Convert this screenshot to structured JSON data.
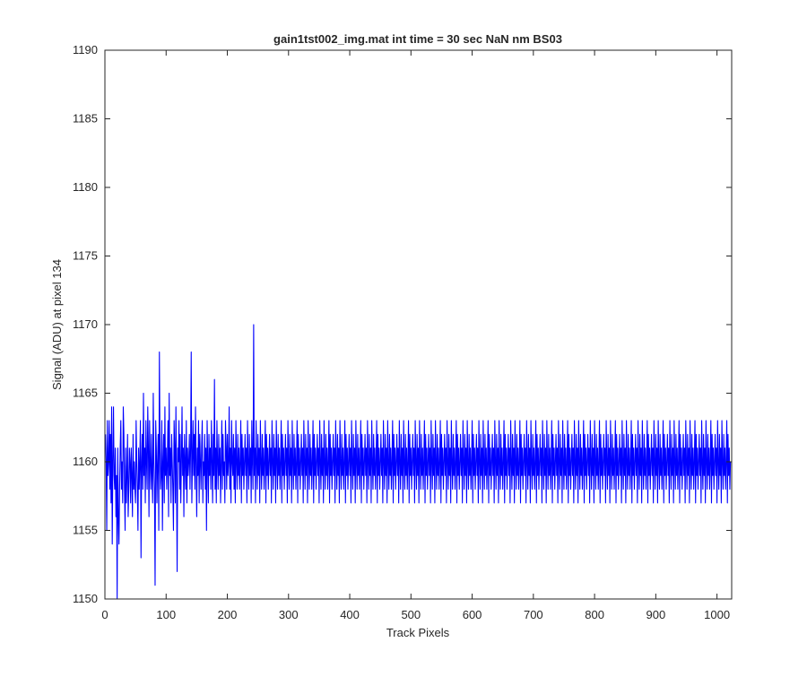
{
  "chart_data": {
    "type": "line",
    "title": "gain1tst002_img.mat int time = 30 sec  NaN nm BS03",
    "xlabel": "Track Pixels",
    "ylabel": "Signal (ADU) at pixel 134",
    "xlim": [
      0,
      1024
    ],
    "ylim": [
      1150,
      1190
    ],
    "xticks": [
      0,
      100,
      200,
      300,
      400,
      500,
      600,
      700,
      800,
      900,
      1000
    ],
    "yticks": [
      1150,
      1155,
      1160,
      1165,
      1170,
      1175,
      1180,
      1185,
      1190
    ],
    "grid": false,
    "legend": "none",
    "line_color": "#0000ff",
    "series": [
      {
        "x_start": 1,
        "x_step": 1,
        "values": [
          1162,
          1160,
          1155,
          1163,
          1159,
          1160,
          1163,
          1158,
          1162,
          1157,
          1164,
          1154,
          1160,
          1164,
          1159,
          1158,
          1161,
          1156,
          1159,
          1150,
          1161,
          1156,
          1154,
          1158,
          1161,
          1163,
          1158,
          1160,
          1157,
          1164,
          1162,
          1158,
          1155,
          1161,
          1157,
          1159,
          1162,
          1156,
          1158,
          1161,
          1160,
          1157,
          1161,
          1159,
          1156,
          1162,
          1158,
          1160,
          1158,
          1157,
          1163,
          1160,
          1158,
          1155,
          1161,
          1158,
          1160,
          1163,
          1153,
          1160,
          1162,
          1158,
          1165,
          1159,
          1161,
          1157,
          1163,
          1160,
          1158,
          1164,
          1161,
          1156,
          1163,
          1160,
          1158,
          1162,
          1159,
          1157,
          1165,
          1160,
          1158,
          1151,
          1163,
          1161,
          1157,
          1160,
          1162,
          1155,
          1168,
          1161,
          1158,
          1159,
          1163,
          1155,
          1160,
          1162,
          1157,
          1164,
          1159,
          1161,
          1158,
          1160,
          1163,
          1156,
          1165,
          1159,
          1161,
          1157,
          1162,
          1160,
          1158,
          1155,
          1163,
          1161,
          1157,
          1164,
          1159,
          1152,
          1161,
          1160,
          1163,
          1158,
          1162,
          1157,
          1160,
          1164,
          1159,
          1161,
          1156,
          1162,
          1160,
          1158,
          1163,
          1157,
          1161,
          1159,
          1160,
          1162,
          1158,
          1161,
          1168,
          1157,
          1160,
          1163,
          1159,
          1162,
          1158,
          1164,
          1160,
          1156,
          1161,
          1159,
          1163,
          1157,
          1162,
          1160,
          1158,
          1161,
          1163,
          1157,
          1160,
          1159,
          1162,
          1158,
          1161,
          1155,
          1163,
          1160,
          1157,
          1162,
          1159,
          1161,
          1158,
          1163,
          1160,
          1157,
          1162,
          1159,
          1166,
          1158,
          1161,
          1157,
          1163,
          1160,
          1158,
          1162,
          1159,
          1161,
          1157,
          1160,
          1163,
          1158,
          1162,
          1159,
          1160,
          1157,
          1163,
          1161,
          1158,
          1162,
          1159,
          1160,
          1164,
          1158,
          1161,
          1157,
          1163,
          1160,
          1159,
          1162,
          1158,
          1161,
          1157,
          1163,
          1160,
          1158,
          1162,
          1159,
          1161,
          1158,
          1160,
          1163,
          1157,
          1162,
          1159,
          1161,
          1158,
          1160,
          1162,
          1159,
          1161,
          1157,
          1163,
          1160,
          1158,
          1162,
          1159,
          1161,
          1157,
          1163,
          1160,
          1158,
          1170,
          1159,
          1161,
          1157,
          1163,
          1160,
          1158,
          1162,
          1159,
          1161,
          1157,
          1163,
          1160,
          1158,
          1162,
          1159,
          1161,
          1158,
          1160,
          1163,
          1157,
          1162,
          1159,
          1161,
          1158,
          1160,
          1162,
          1159,
          1161,
          1157,
          1163,
          1160,
          1158,
          1162,
          1159,
          1161,
          1157,
          1163,
          1160,
          1158,
          1162,
          1159,
          1161,
          1158,
          1160,
          1163,
          1157,
          1162,
          1159,
          1161,
          1158,
          1160,
          1162,
          1159,
          1161,
          1157,
          1163,
          1160,
          1158,
          1162,
          1159,
          1161,
          1157,
          1163,
          1160,
          1158,
          1162,
          1159,
          1161,
          1158,
          1160,
          1163,
          1157,
          1162,
          1159,
          1161,
          1158,
          1160,
          1162,
          1159,
          1161,
          1157,
          1163,
          1160,
          1158,
          1162,
          1159,
          1161,
          1157,
          1163,
          1160,
          1158,
          1162,
          1159,
          1161,
          1158,
          1160,
          1163,
          1157,
          1162,
          1159,
          1161,
          1158,
          1160,
          1162,
          1159,
          1161,
          1157,
          1163,
          1160,
          1158,
          1162,
          1159,
          1161,
          1157,
          1163,
          1160,
          1158,
          1162,
          1159,
          1161,
          1158,
          1160,
          1163,
          1157,
          1162,
          1159,
          1161,
          1158,
          1160,
          1162,
          1159,
          1161,
          1157,
          1163,
          1160,
          1158,
          1162,
          1159,
          1161,
          1157,
          1163,
          1160,
          1158,
          1162,
          1159,
          1161,
          1158,
          1160,
          1163,
          1157,
          1162,
          1159,
          1161,
          1158,
          1160,
          1162,
          1159,
          1161,
          1157,
          1163,
          1160,
          1158,
          1162,
          1159,
          1161,
          1157,
          1163,
          1160,
          1158,
          1162,
          1159,
          1161,
          1158,
          1160,
          1163,
          1157,
          1162,
          1159,
          1161,
          1158,
          1160,
          1162,
          1159,
          1161,
          1157,
          1163,
          1160,
          1158,
          1162,
          1159,
          1161,
          1157,
          1163,
          1160,
          1158,
          1162,
          1159,
          1161,
          1158,
          1160,
          1163,
          1157,
          1162,
          1159,
          1161,
          1158,
          1160,
          1162,
          1159,
          1161,
          1157,
          1163,
          1160,
          1158,
          1162,
          1159,
          1161,
          1157,
          1163,
          1160,
          1158,
          1162,
          1159,
          1161,
          1158,
          1160,
          1163,
          1157,
          1162,
          1159,
          1161,
          1158,
          1160,
          1162,
          1159,
          1161,
          1157,
          1163,
          1160,
          1158,
          1162,
          1159,
          1161,
          1157,
          1163,
          1160,
          1158,
          1162,
          1159,
          1161,
          1158,
          1160,
          1163,
          1157,
          1162,
          1159,
          1161,
          1158,
          1160,
          1162,
          1159,
          1161,
          1157,
          1163,
          1160,
          1158,
          1162,
          1159,
          1161,
          1157,
          1163,
          1160,
          1158,
          1162,
          1159,
          1161,
          1158,
          1160,
          1163,
          1157,
          1162,
          1159,
          1161,
          1158,
          1160,
          1162,
          1159,
          1161,
          1157,
          1163,
          1160,
          1158,
          1162,
          1159,
          1161,
          1157,
          1163,
          1160,
          1158,
          1162,
          1159,
          1161,
          1158,
          1160,
          1163,
          1157,
          1162,
          1159,
          1161,
          1158,
          1160,
          1162,
          1159,
          1161,
          1157,
          1163,
          1160,
          1158,
          1162,
          1159,
          1161,
          1157,
          1163,
          1160,
          1158,
          1162,
          1159,
          1161,
          1158,
          1160,
          1163,
          1157,
          1162,
          1159,
          1161,
          1158,
          1160,
          1162,
          1159,
          1161,
          1157,
          1163,
          1160,
          1158,
          1162,
          1159,
          1161,
          1157,
          1163,
          1160,
          1158,
          1162,
          1159,
          1161,
          1158,
          1160,
          1163,
          1157,
          1162,
          1159,
          1161,
          1158,
          1160,
          1162,
          1159,
          1161,
          1157,
          1163,
          1160,
          1158,
          1162,
          1159,
          1161,
          1157,
          1163,
          1160,
          1158,
          1162,
          1159,
          1161,
          1158,
          1160,
          1163,
          1157,
          1162,
          1159,
          1161,
          1158,
          1160,
          1162,
          1159,
          1161,
          1157,
          1163,
          1160,
          1158,
          1162,
          1159,
          1161,
          1157,
          1163,
          1160,
          1158,
          1162,
          1159,
          1161,
          1158,
          1160,
          1163,
          1157,
          1162,
          1159,
          1161,
          1158,
          1160,
          1162,
          1159,
          1161,
          1157,
          1163,
          1160,
          1158,
          1162,
          1159,
          1161,
          1157,
          1163,
          1160,
          1158,
          1162,
          1159,
          1161,
          1158,
          1160,
          1163,
          1157,
          1162,
          1159,
          1161,
          1158,
          1160,
          1162,
          1159,
          1161,
          1157,
          1163,
          1160,
          1158,
          1162,
          1159,
          1161,
          1157,
          1163,
          1160,
          1158,
          1162,
          1159,
          1161,
          1158,
          1160,
          1163,
          1157,
          1162,
          1159,
          1161,
          1158,
          1160,
          1162,
          1159,
          1161,
          1157,
          1163,
          1160,
          1158,
          1162,
          1159,
          1161,
          1157,
          1163,
          1160,
          1158,
          1162,
          1159,
          1161,
          1158,
          1160,
          1163,
          1157,
          1162,
          1159,
          1161,
          1158,
          1160,
          1162,
          1159,
          1161,
          1157,
          1163,
          1160,
          1158,
          1162,
          1159,
          1161,
          1157,
          1163,
          1160,
          1158,
          1162,
          1159,
          1161,
          1158,
          1160,
          1163,
          1157,
          1162,
          1159,
          1161,
          1158,
          1160,
          1162,
          1159,
          1161,
          1157,
          1163,
          1160,
          1158,
          1162,
          1159,
          1161,
          1157,
          1163,
          1160,
          1158,
          1162,
          1159,
          1161,
          1158,
          1160,
          1163,
          1157,
          1162,
          1159,
          1161,
          1158,
          1160,
          1162,
          1159,
          1161,
          1157,
          1163,
          1160,
          1158,
          1162,
          1159,
          1161,
          1157,
          1163,
          1160,
          1158,
          1162,
          1159,
          1161,
          1158,
          1160,
          1163,
          1157,
          1162,
          1159,
          1161,
          1158,
          1160,
          1162,
          1159,
          1161,
          1157,
          1163,
          1160,
          1158,
          1162,
          1159,
          1161,
          1157,
          1163,
          1160,
          1158,
          1162,
          1159,
          1161,
          1158,
          1160,
          1163,
          1157,
          1162,
          1159,
          1161,
          1158,
          1160,
          1162,
          1159,
          1161,
          1157,
          1163,
          1160,
          1158,
          1162,
          1159,
          1161,
          1157,
          1163,
          1160,
          1158,
          1162,
          1159,
          1161,
          1158,
          1160,
          1163,
          1157,
          1162,
          1159,
          1161,
          1158,
          1160,
          1162,
          1159,
          1161,
          1157,
          1163,
          1160,
          1158,
          1162,
          1159,
          1161,
          1157,
          1163,
          1160,
          1158,
          1162,
          1159,
          1161,
          1158,
          1160,
          1163,
          1157,
          1162,
          1159,
          1161,
          1158,
          1160,
          1162,
          1159,
          1161,
          1157,
          1163,
          1160,
          1158,
          1162,
          1159,
          1161,
          1157,
          1163,
          1160,
          1158,
          1162,
          1159,
          1161,
          1158,
          1160,
          1163,
          1157,
          1162,
          1159,
          1161,
          1158,
          1160,
          1162,
          1159,
          1161,
          1157,
          1163,
          1160,
          1158,
          1162,
          1159,
          1161,
          1157,
          1163,
          1160,
          1158,
          1162,
          1159,
          1161,
          1158,
          1160,
          1163,
          1157,
          1162,
          1159,
          1161,
          1158,
          1160,
          1162,
          1159,
          1161,
          1157,
          1163,
          1160,
          1158,
          1162,
          1159,
          1161,
          1157,
          1163,
          1160,
          1158,
          1162,
          1159,
          1161,
          1158,
          1160,
          1163,
          1157,
          1162,
          1159,
          1161,
          1158,
          1160,
          1162,
          1159,
          1161,
          1157,
          1163,
          1160,
          1158,
          1162,
          1159,
          1161,
          1157,
          1163,
          1160,
          1158,
          1162,
          1159,
          1161,
          1158,
          1160,
          1163,
          1157,
          1162,
          1159,
          1161,
          1158,
          1160,
          1162,
          1159,
          1161,
          1157,
          1163,
          1160,
          1158,
          1162,
          1159,
          1161,
          1157,
          1163,
          1160,
          1158,
          1162,
          1159,
          1161,
          1158,
          1160,
          1163,
          1157,
          1162,
          1159,
          1161,
          1158,
          1160
        ]
      }
    ]
  }
}
